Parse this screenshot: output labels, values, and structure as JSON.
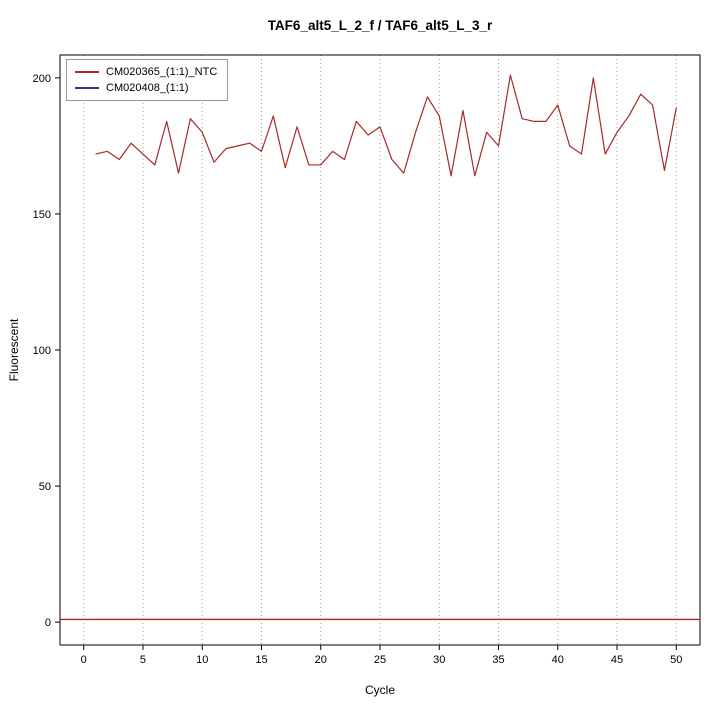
{
  "chart_data": {
    "type": "line",
    "title": "TAF6_alt5_L_2_f / TAF6_alt5_L_3_r",
    "xlabel": "Cycle",
    "ylabel": "Fluorescent",
    "xlim": [
      -2,
      52
    ],
    "ylim": [
      -8.4,
      208.4
    ],
    "x_ticks": [
      0,
      5,
      10,
      15,
      20,
      25,
      30,
      35,
      40,
      45,
      50
    ],
    "y_ticks": [
      0,
      50,
      100,
      150,
      200
    ],
    "grid": "vertical-dotted",
    "grid_color": "#9a9a9a",
    "legend_position": "top-left",
    "x": [
      1,
      2,
      3,
      4,
      5,
      6,
      7,
      8,
      9,
      10,
      11,
      12,
      13,
      14,
      15,
      16,
      17,
      18,
      19,
      20,
      21,
      22,
      23,
      24,
      25,
      26,
      27,
      28,
      29,
      30,
      31,
      32,
      33,
      34,
      35,
      36,
      37,
      38,
      39,
      40,
      41,
      42,
      43,
      44,
      45,
      46,
      47,
      48,
      49,
      50
    ],
    "series": [
      {
        "name": "CM020365_(1:1)_NTC",
        "color": "#A52A2A",
        "values": [
          172,
          173,
          170,
          176,
          172,
          168,
          184,
          165,
          185,
          180,
          169,
          174,
          175,
          176,
          173,
          186,
          167,
          182,
          168,
          168,
          173,
          170,
          184,
          179,
          182,
          170,
          165,
          180,
          193,
          186,
          164,
          188,
          164,
          180,
          175,
          201,
          185,
          184,
          184,
          190,
          175,
          172,
          200,
          172,
          180,
          186,
          194,
          190,
          166,
          189
        ]
      },
      {
        "name": "CM020408_(1:1)",
        "color": "#363684",
        "values": [
          1,
          1,
          1,
          1,
          1,
          1,
          1,
          1,
          1,
          1,
          1,
          1,
          1,
          1,
          1,
          1,
          1,
          1,
          1,
          1,
          1,
          1,
          1,
          1,
          1,
          1,
          1,
          1,
          1,
          1,
          1,
          1,
          1,
          1,
          1,
          1,
          1,
          1,
          1,
          1,
          1,
          1,
          1,
          1,
          1,
          1,
          1,
          1,
          1,
          1
        ]
      }
    ],
    "baseline": {
      "y": 1,
      "color": "#A52A2A"
    }
  }
}
